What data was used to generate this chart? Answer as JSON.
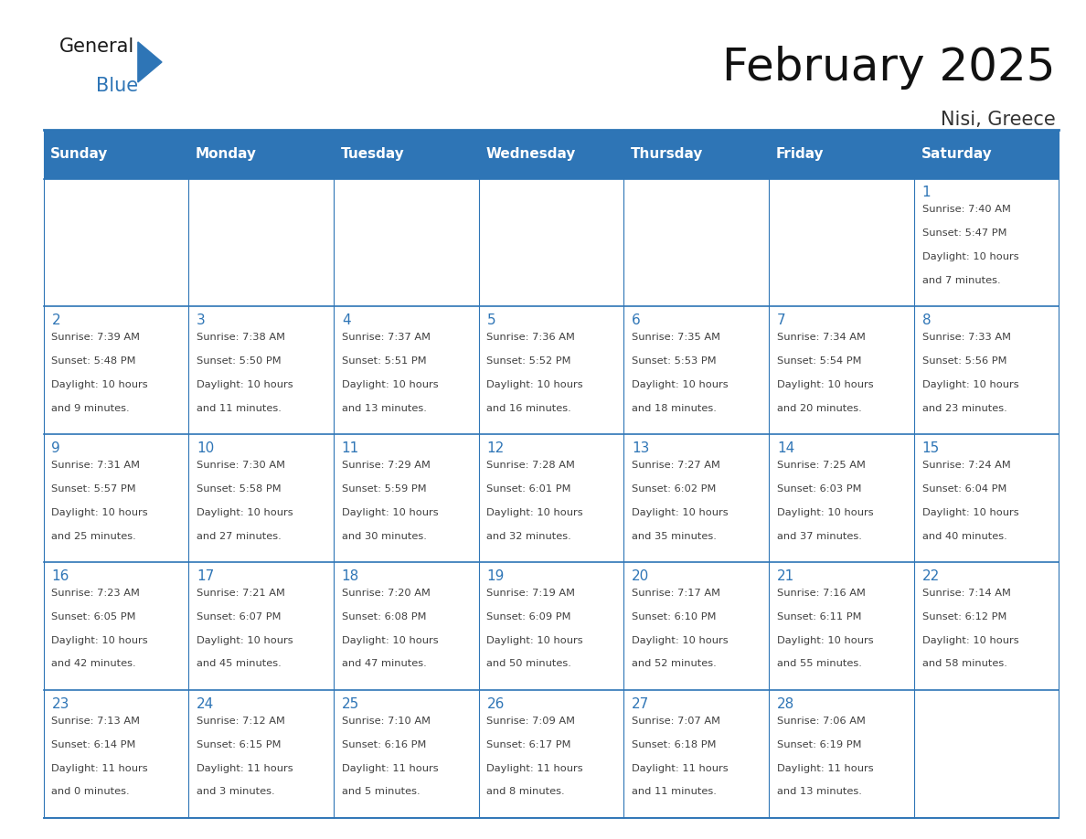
{
  "title": "February 2025",
  "subtitle": "Nisi, Greece",
  "days_of_week": [
    "Sunday",
    "Monday",
    "Tuesday",
    "Wednesday",
    "Thursday",
    "Friday",
    "Saturday"
  ],
  "header_bg": "#2E75B6",
  "header_text": "#FFFFFF",
  "border_color": "#2E75B6",
  "day_number_color": "#2E75B6",
  "text_color": "#404040",
  "cell_bg": "#FFFFFF",
  "logo_general_color": "#1a1a1a",
  "logo_blue_color": "#2E75B6",
  "logo_triangle_color": "#2E75B6",
  "calendar_data": [
    [
      null,
      null,
      null,
      null,
      null,
      null,
      {
        "day": 1,
        "sunrise": "7:40 AM",
        "sunset": "5:47 PM",
        "daylight": "10 hours and 7 minutes."
      }
    ],
    [
      {
        "day": 2,
        "sunrise": "7:39 AM",
        "sunset": "5:48 PM",
        "daylight": "10 hours and 9 minutes."
      },
      {
        "day": 3,
        "sunrise": "7:38 AM",
        "sunset": "5:50 PM",
        "daylight": "10 hours and 11 minutes."
      },
      {
        "day": 4,
        "sunrise": "7:37 AM",
        "sunset": "5:51 PM",
        "daylight": "10 hours and 13 minutes."
      },
      {
        "day": 5,
        "sunrise": "7:36 AM",
        "sunset": "5:52 PM",
        "daylight": "10 hours and 16 minutes."
      },
      {
        "day": 6,
        "sunrise": "7:35 AM",
        "sunset": "5:53 PM",
        "daylight": "10 hours and 18 minutes."
      },
      {
        "day": 7,
        "sunrise": "7:34 AM",
        "sunset": "5:54 PM",
        "daylight": "10 hours and 20 minutes."
      },
      {
        "day": 8,
        "sunrise": "7:33 AM",
        "sunset": "5:56 PM",
        "daylight": "10 hours and 23 minutes."
      }
    ],
    [
      {
        "day": 9,
        "sunrise": "7:31 AM",
        "sunset": "5:57 PM",
        "daylight": "10 hours and 25 minutes."
      },
      {
        "day": 10,
        "sunrise": "7:30 AM",
        "sunset": "5:58 PM",
        "daylight": "10 hours and 27 minutes."
      },
      {
        "day": 11,
        "sunrise": "7:29 AM",
        "sunset": "5:59 PM",
        "daylight": "10 hours and 30 minutes."
      },
      {
        "day": 12,
        "sunrise": "7:28 AM",
        "sunset": "6:01 PM",
        "daylight": "10 hours and 32 minutes."
      },
      {
        "day": 13,
        "sunrise": "7:27 AM",
        "sunset": "6:02 PM",
        "daylight": "10 hours and 35 minutes."
      },
      {
        "day": 14,
        "sunrise": "7:25 AM",
        "sunset": "6:03 PM",
        "daylight": "10 hours and 37 minutes."
      },
      {
        "day": 15,
        "sunrise": "7:24 AM",
        "sunset": "6:04 PM",
        "daylight": "10 hours and 40 minutes."
      }
    ],
    [
      {
        "day": 16,
        "sunrise": "7:23 AM",
        "sunset": "6:05 PM",
        "daylight": "10 hours and 42 minutes."
      },
      {
        "day": 17,
        "sunrise": "7:21 AM",
        "sunset": "6:07 PM",
        "daylight": "10 hours and 45 minutes."
      },
      {
        "day": 18,
        "sunrise": "7:20 AM",
        "sunset": "6:08 PM",
        "daylight": "10 hours and 47 minutes."
      },
      {
        "day": 19,
        "sunrise": "7:19 AM",
        "sunset": "6:09 PM",
        "daylight": "10 hours and 50 minutes."
      },
      {
        "day": 20,
        "sunrise": "7:17 AM",
        "sunset": "6:10 PM",
        "daylight": "10 hours and 52 minutes."
      },
      {
        "day": 21,
        "sunrise": "7:16 AM",
        "sunset": "6:11 PM",
        "daylight": "10 hours and 55 minutes."
      },
      {
        "day": 22,
        "sunrise": "7:14 AM",
        "sunset": "6:12 PM",
        "daylight": "10 hours and 58 minutes."
      }
    ],
    [
      {
        "day": 23,
        "sunrise": "7:13 AM",
        "sunset": "6:14 PM",
        "daylight": "11 hours and 0 minutes."
      },
      {
        "day": 24,
        "sunrise": "7:12 AM",
        "sunset": "6:15 PM",
        "daylight": "11 hours and 3 minutes."
      },
      {
        "day": 25,
        "sunrise": "7:10 AM",
        "sunset": "6:16 PM",
        "daylight": "11 hours and 5 minutes."
      },
      {
        "day": 26,
        "sunrise": "7:09 AM",
        "sunset": "6:17 PM",
        "daylight": "11 hours and 8 minutes."
      },
      {
        "day": 27,
        "sunrise": "7:07 AM",
        "sunset": "6:18 PM",
        "daylight": "11 hours and 11 minutes."
      },
      {
        "day": 28,
        "sunrise": "7:06 AM",
        "sunset": "6:19 PM",
        "daylight": "11 hours and 13 minutes."
      },
      null
    ]
  ]
}
